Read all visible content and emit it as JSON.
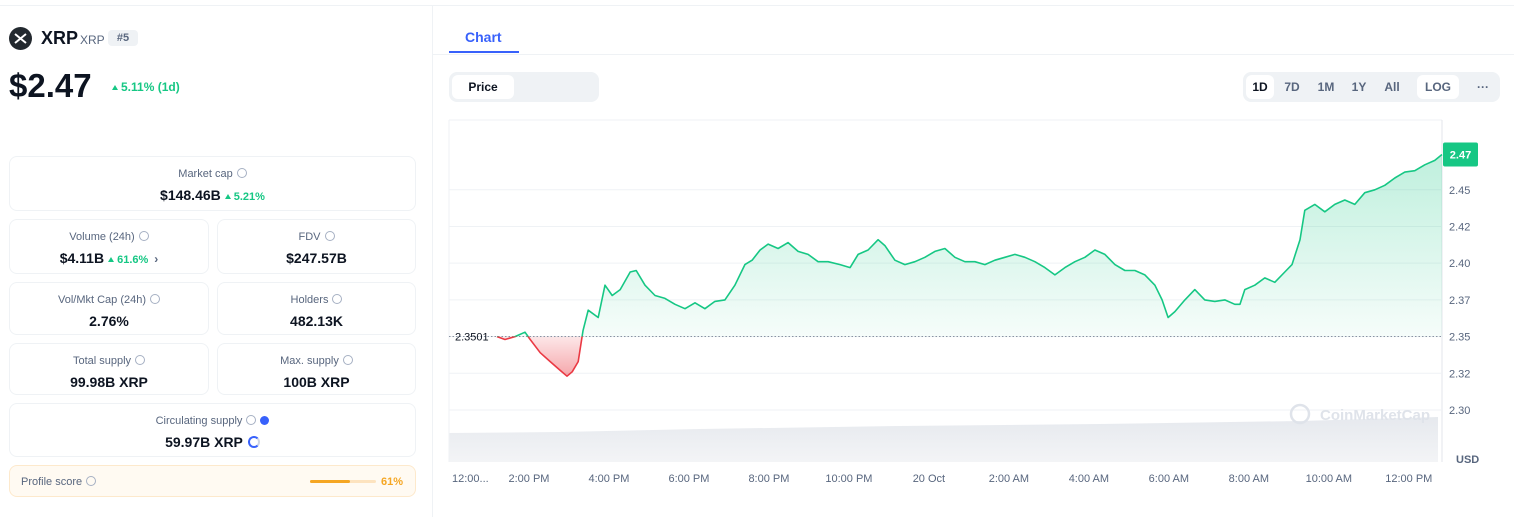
{
  "coin": {
    "name": "XRP",
    "symbol": "XRP",
    "rank": "#5",
    "price": "$2.47",
    "change": "5.11% (1d)"
  },
  "stats": [
    {
      "label": "Market cap",
      "value": "$148.46B",
      "change": "5.21%"
    },
    {
      "label": "Volume (24h)",
      "value": "$4.11B",
      "change": "61.6%"
    },
    {
      "label": "FDV",
      "value": "$247.57B"
    },
    {
      "label": "Vol/Mkt Cap (24h)",
      "value": "2.76%"
    },
    {
      "label": "Holders",
      "value": "482.13K"
    },
    {
      "label": "Total supply",
      "value": "99.98B XRP"
    },
    {
      "label": "Max. supply",
      "value": "100B XRP"
    },
    {
      "label": "Circulating supply",
      "value": "59.97B XRP"
    }
  ],
  "profile_score": {
    "label": "Profile score",
    "value": 61,
    "value_label": "61%"
  },
  "tabs": [
    "Chart"
  ],
  "buttons": {
    "price": "Price",
    "ranges": [
      "1D",
      "7D",
      "1M",
      "1Y",
      "All"
    ],
    "log": "LOG",
    "more": "···"
  },
  "chart_data": {
    "type": "line",
    "color_up": "#16c784",
    "color_down": "#ea3943",
    "x": [
      13.2,
      13.4,
      13.65,
      13.9,
      14.03,
      14.28,
      14.53,
      14.78,
      14.95,
      15.08,
      15.23,
      15.35,
      15.48,
      15.73,
      15.9,
      16.08,
      16.28,
      16.53,
      16.68,
      16.9,
      17.15,
      17.4,
      17.65,
      17.9,
      18.15,
      18.4,
      18.65,
      18.9,
      19.15,
      19.4,
      19.58,
      19.78,
      19.98,
      20.23,
      20.48,
      20.73,
      20.98,
      21.23,
      21.48,
      21.78,
      22.03,
      22.23,
      22.48,
      22.73,
      22.9,
      23.15,
      23.4,
      23.65,
      23.9,
      24.15,
      24.4,
      24.65,
      24.9,
      25.15,
      25.4,
      25.65,
      25.9,
      26.15,
      26.4,
      26.65,
      26.9,
      27.15,
      27.4,
      27.65,
      27.9,
      28.15,
      28.4,
      28.65,
      28.9,
      29.15,
      29.4,
      29.65,
      29.83,
      29.98,
      30.15,
      30.4,
      30.65,
      30.9,
      31.15,
      31.4,
      31.65,
      31.78,
      31.9,
      32.15,
      32.4,
      32.65,
      32.9,
      33.08,
      33.28,
      33.4,
      33.65,
      33.9,
      34.15,
      34.4,
      34.65,
      34.9,
      35.15,
      35.4,
      35.65,
      35.9,
      36.15,
      36.4,
      36.65,
      36.83
    ],
    "values": [
      2.35,
      2.348,
      2.35,
      2.353,
      2.348,
      2.339,
      2.333,
      2.327,
      2.323,
      2.326,
      2.333,
      2.354,
      2.368,
      2.363,
      2.385,
      2.378,
      2.382,
      2.394,
      2.395,
      2.385,
      2.378,
      2.376,
      2.372,
      2.369,
      2.373,
      2.369,
      2.374,
      2.375,
      2.385,
      2.399,
      2.402,
      2.409,
      2.413,
      2.41,
      2.414,
      2.408,
      2.406,
      2.401,
      2.401,
      2.399,
      2.397,
      2.406,
      2.409,
      2.416,
      2.412,
      2.402,
      2.399,
      2.401,
      2.404,
      2.408,
      2.41,
      2.404,
      2.401,
      2.401,
      2.399,
      2.402,
      2.404,
      2.406,
      2.404,
      2.401,
      2.397,
      2.392,
      2.397,
      2.401,
      2.404,
      2.409,
      2.406,
      2.399,
      2.395,
      2.395,
      2.392,
      2.385,
      2.375,
      2.363,
      2.367,
      2.375,
      2.382,
      2.375,
      2.374,
      2.375,
      2.372,
      2.372,
      2.382,
      2.385,
      2.39,
      2.387,
      2.394,
      2.399,
      2.416,
      2.436,
      2.44,
      2.435,
      2.44,
      2.443,
      2.44,
      2.448,
      2.45,
      2.453,
      2.458,
      2.462,
      2.463,
      2.467,
      2.47,
      2.474
    ],
    "baseline": 2.3501,
    "price_tag": "2.47",
    "xlim": [
      12,
      36.83
    ],
    "ylim": [
      2.2646,
      2.4975
    ],
    "xticks": [
      {
        "value": 12,
        "label": "12:00..."
      },
      {
        "value": 14,
        "label": "2:00 PM"
      },
      {
        "value": 16,
        "label": "4:00 PM"
      },
      {
        "value": 18,
        "label": "6:00 PM"
      },
      {
        "value": 20,
        "label": "8:00 PM"
      },
      {
        "value": 22,
        "label": "10:00 PM"
      },
      {
        "value": 24,
        "label": "20 Oct"
      },
      {
        "value": 26,
        "label": "2:00 AM"
      },
      {
        "value": 28,
        "label": "4:00 AM"
      },
      {
        "value": 30,
        "label": "6:00 AM"
      },
      {
        "value": 32,
        "label": "8:00 AM"
      },
      {
        "value": 34,
        "label": "10:00 AM"
      },
      {
        "value": 36,
        "label": "12:00 PM"
      }
    ],
    "yticks": [
      {
        "value": 2.3,
        "label": "2.30"
      },
      {
        "value": 2.325,
        "label": "2.32"
      },
      2.35,
      {
        "value": 2.375,
        "label": "2.37"
      },
      {
        "value": 2.4,
        "label": "2.40"
      },
      {
        "value": 2.425,
        "label": "2.42"
      },
      2.45
    ],
    "y_axis_label": "USD",
    "watermark": "CoinMarketCap",
    "grid": true
  }
}
